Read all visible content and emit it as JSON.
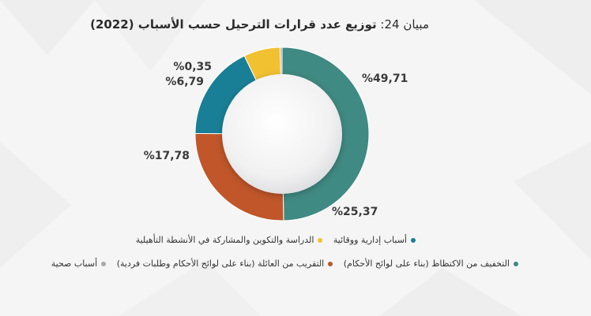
{
  "title": {
    "figure_label": "مبيان 24:",
    "text": "توزيع عدد قرارات الترحيل حسب الأسباب (2022)"
  },
  "chart_data": {
    "type": "pie",
    "title": "توزيع عدد قرارات الترحيل حسب الأسباب (2022)",
    "categories": [
      "التخفيف من الاكتظاظ (بناء على لوائح الأحكام)",
      "التقريب من العائلة (بناء على لوائح الأحكام وطلبات فردية)",
      "أسباب إدارية ووقائية",
      "الدراسة والتكوين والمشاركة في الأنشطة التأهيلية",
      "أسباب صحية"
    ],
    "values": [
      49.71,
      25.37,
      17.78,
      6.79,
      0.35
    ],
    "labels": [
      "%49,71",
      "%25,37",
      "%17,78",
      "%6,79",
      "%0,35"
    ],
    "colors": [
      "#3f8a82",
      "#c0562a",
      "#187f96",
      "#f2c131",
      "#a9a9a9"
    ],
    "donut": true,
    "legend_position": "bottom"
  },
  "legend": {
    "row1": [
      {
        "label": "أسباب إدارية ووقائية",
        "color": "#187f96"
      },
      {
        "label": "الدراسة والتكوين والمشاركة في الأنشطة التأهيلية",
        "color": "#f2c131"
      }
    ],
    "row2": [
      {
        "label": "التخفيف من الاكتظاظ (بناء على لوائح الأحكام)",
        "color": "#3f8a82"
      },
      {
        "label": "التقريب من العائلة (بناء على لوائح الأحكام وطلبات فردية)",
        "color": "#c0562a"
      },
      {
        "label": "أسباب صحية",
        "color": "#a9a9a9"
      }
    ]
  }
}
